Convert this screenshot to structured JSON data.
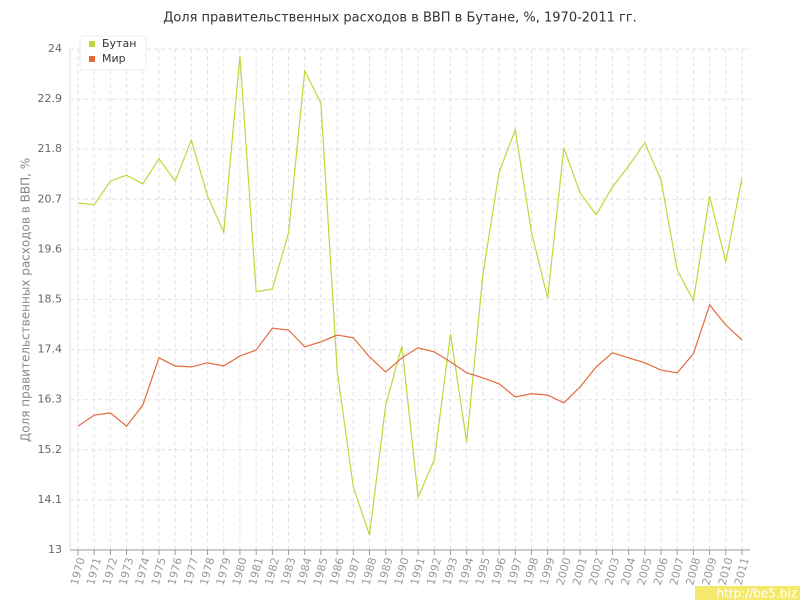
{
  "chart_data": {
    "type": "line",
    "title": "Доля правительственных расходов в ВВП в Бутане, %, 1970-2011 гг.",
    "y_label": "Доля правительственных расходов в ВВП, %",
    "watermark": "http://be5.biz",
    "categories": [
      "1970",
      "1971",
      "1972",
      "1973",
      "1974",
      "1975",
      "1976",
      "1977",
      "1978",
      "1979",
      "1980",
      "1981",
      "1982",
      "1983",
      "1984",
      "1985",
      "1986",
      "1987",
      "1988",
      "1989",
      "1990",
      "1991",
      "1992",
      "1993",
      "1994",
      "1995",
      "1996",
      "1997",
      "1998",
      "1999",
      "2000",
      "2001",
      "2002",
      "2003",
      "2004",
      "2005",
      "2006",
      "2007",
      "2008",
      "2009",
      "2010",
      "2011"
    ],
    "series": [
      {
        "name": "Бутан",
        "color": "#bcd83c",
        "values": [
          20.62,
          20.58,
          21.1,
          21.23,
          21.04,
          21.59,
          21.1,
          22.0,
          20.77,
          19.98,
          23.85,
          18.67,
          18.73,
          19.96,
          23.52,
          22.81,
          16.95,
          14.38,
          13.33,
          16.18,
          17.48,
          14.16,
          14.98,
          17.74,
          15.37,
          19.04,
          21.3,
          22.22,
          19.98,
          18.53,
          21.83,
          20.84,
          20.36,
          20.97,
          21.43,
          21.94,
          21.12,
          19.15,
          18.47,
          20.77,
          19.32,
          21.17
        ]
      },
      {
        "name": "Мир",
        "color": "#e2693c",
        "values": [
          15.72,
          15.96,
          16.01,
          15.72,
          16.18,
          17.22,
          17.04,
          17.02,
          17.11,
          17.04,
          17.26,
          17.39,
          17.87,
          17.83,
          17.46,
          17.57,
          17.72,
          17.66,
          17.24,
          16.91,
          17.22,
          17.44,
          17.35,
          17.13,
          16.89,
          16.78,
          16.65,
          16.36,
          16.43,
          16.4,
          16.23,
          16.58,
          17.02,
          17.33,
          17.22,
          17.11,
          16.95,
          16.89,
          17.31,
          18.38,
          17.94,
          17.61
        ]
      }
    ],
    "ylim": [
      13,
      24
    ],
    "yticks": [
      13,
      14.1,
      15.2,
      16.3,
      17.4,
      18.5,
      19.6,
      20.7,
      21.8,
      22.9,
      24
    ],
    "grid": true,
    "legend": "top-left"
  }
}
